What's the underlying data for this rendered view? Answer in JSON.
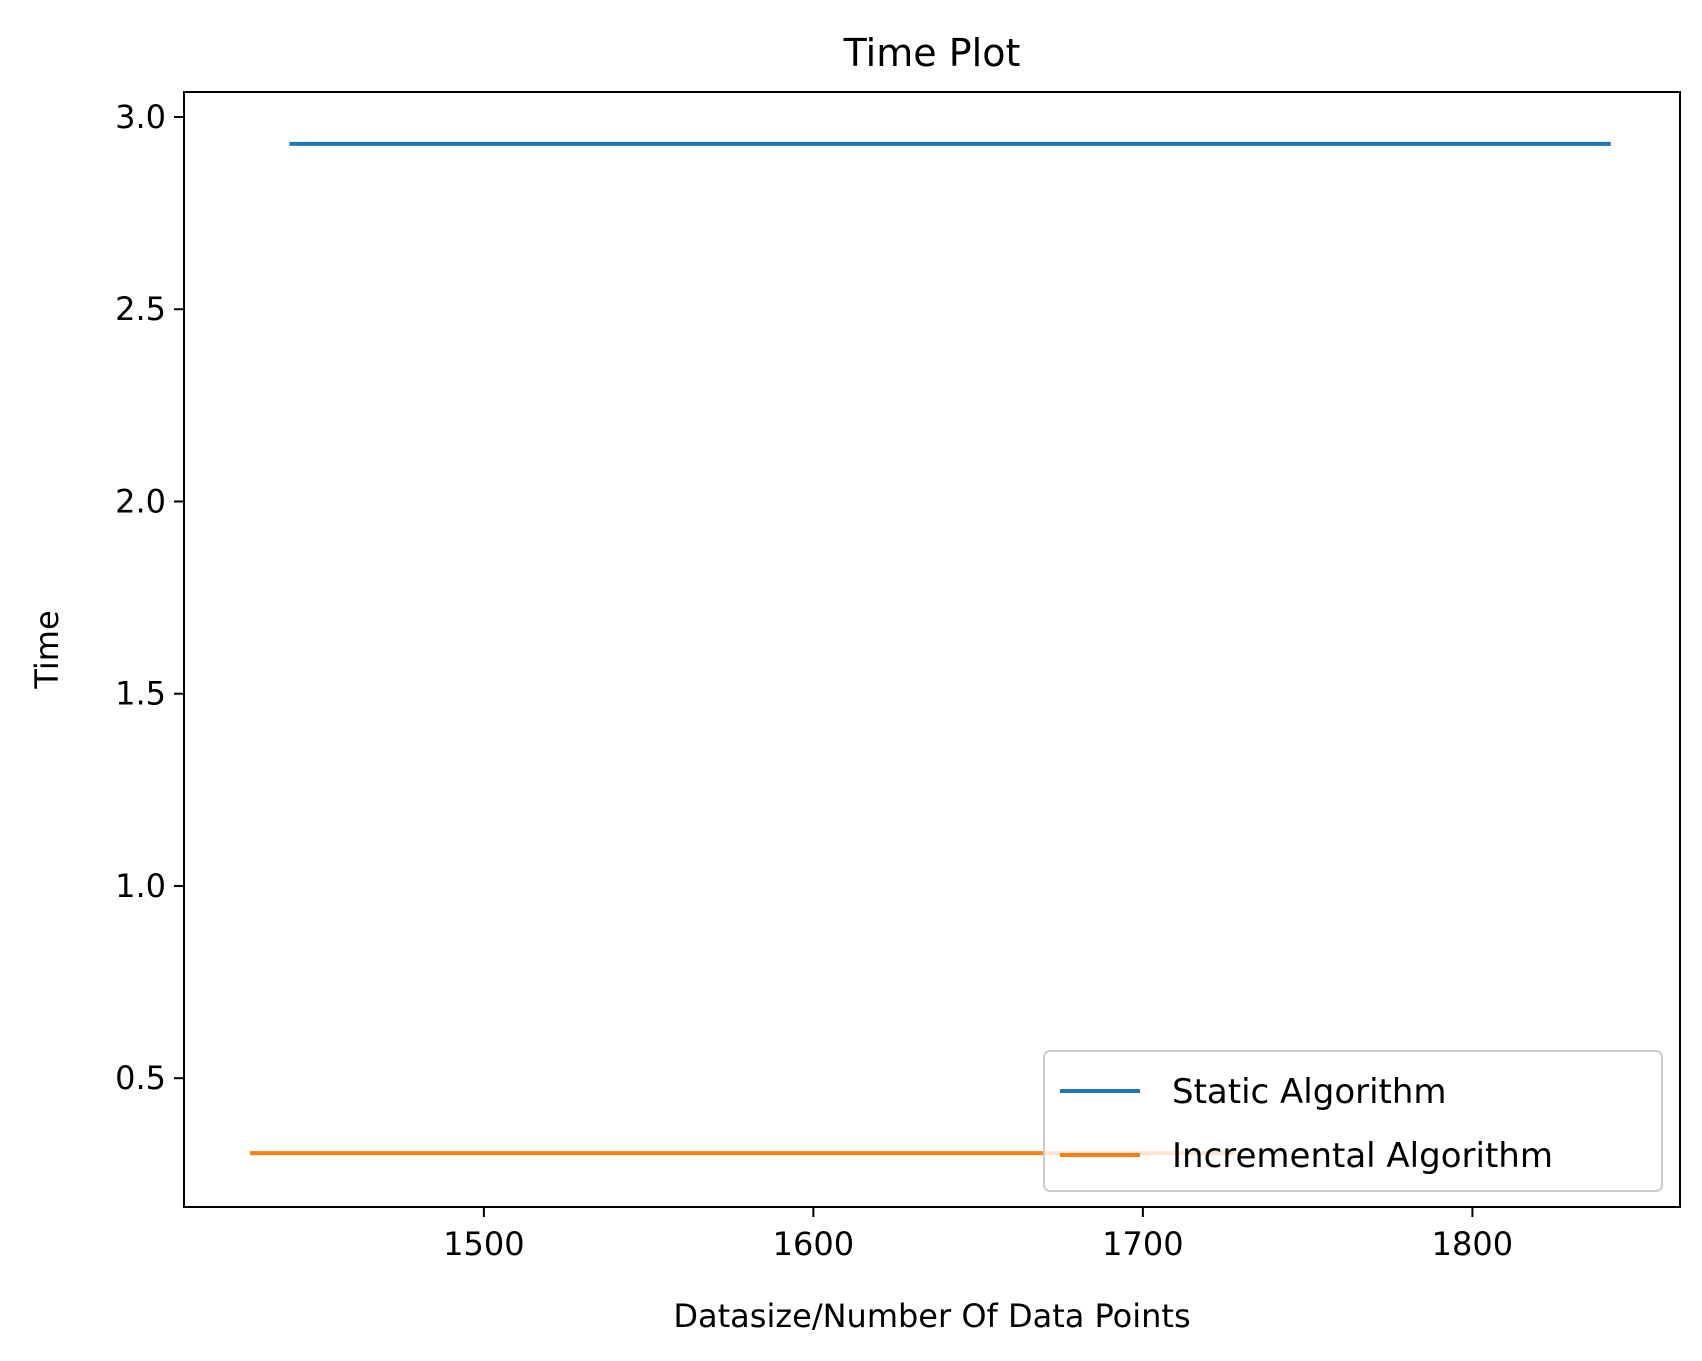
{
  "chart_data": {
    "type": "line",
    "title": "Time Plot",
    "xlabel": "Datasize/Number Of Data Points",
    "ylabel": "Time",
    "xlim": [
      1409,
      1863
    ],
    "ylim": [
      0.165,
      3.065
    ],
    "xticks": [
      1500,
      1600,
      1700,
      1800
    ],
    "xtick_labels": [
      "1500",
      "1600",
      "1700",
      "1800"
    ],
    "yticks": [
      0.5,
      1.0,
      1.5,
      2.0,
      2.5,
      3.0
    ],
    "ytick_labels": [
      "0.5",
      "1.0",
      "1.5",
      "2.0",
      "2.5",
      "3.0"
    ],
    "grid": false,
    "legend_position": "lower-right",
    "series": [
      {
        "name": "Static Algorithm",
        "color": "#1f77b4",
        "x": [
          1441,
          1842
        ],
        "y": [
          2.93,
          2.93
        ]
      },
      {
        "name": "Incremental Algorithm",
        "color": "#ff7f0e",
        "x": [
          1429,
          1728
        ],
        "y": [
          0.305,
          0.305
        ]
      }
    ]
  }
}
